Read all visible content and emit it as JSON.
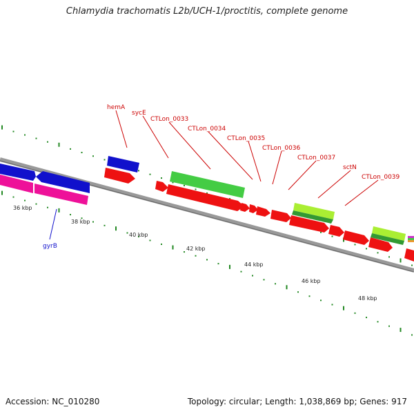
{
  "title": "Chlamydia trachomatis L2b/UCH-1/proctitis, complete genome",
  "footer": {
    "accession": "Accession: NC_010280",
    "topology": "Topology: circular; Length: 1,038,869 bp; Genes: 917"
  },
  "colors": {
    "red": "#ee1111",
    "blue": "#1111cc",
    "magenta": "#ee1199",
    "green": "#44cc44",
    "yellowgreen": "#aaee33",
    "darkgreen": "#339933",
    "backbone": "#888888",
    "tick": "#228822",
    "label_red": "#cc0000",
    "label_blue": "#1111cc"
  },
  "scale_labels": [
    "36 kbp",
    "38 kbp",
    "40 kbp",
    "42 kbp",
    "44 kbp",
    "46 kbp",
    "48 kbp"
  ],
  "gene_labels": [
    {
      "text": "hemA",
      "color": "red"
    },
    {
      "text": "sycE",
      "color": "red"
    },
    {
      "text": "CTLon_0033",
      "color": "red"
    },
    {
      "text": "CTLon_0034",
      "color": "red"
    },
    {
      "text": "CTLon_0035",
      "color": "red"
    },
    {
      "text": "CTLon_0036",
      "color": "red"
    },
    {
      "text": "CTLon_0037",
      "color": "red"
    },
    {
      "text": "sctN",
      "color": "red"
    },
    {
      "text": "CTLon_0039",
      "color": "red"
    },
    {
      "text": "gyrB",
      "color": "blue"
    }
  ]
}
